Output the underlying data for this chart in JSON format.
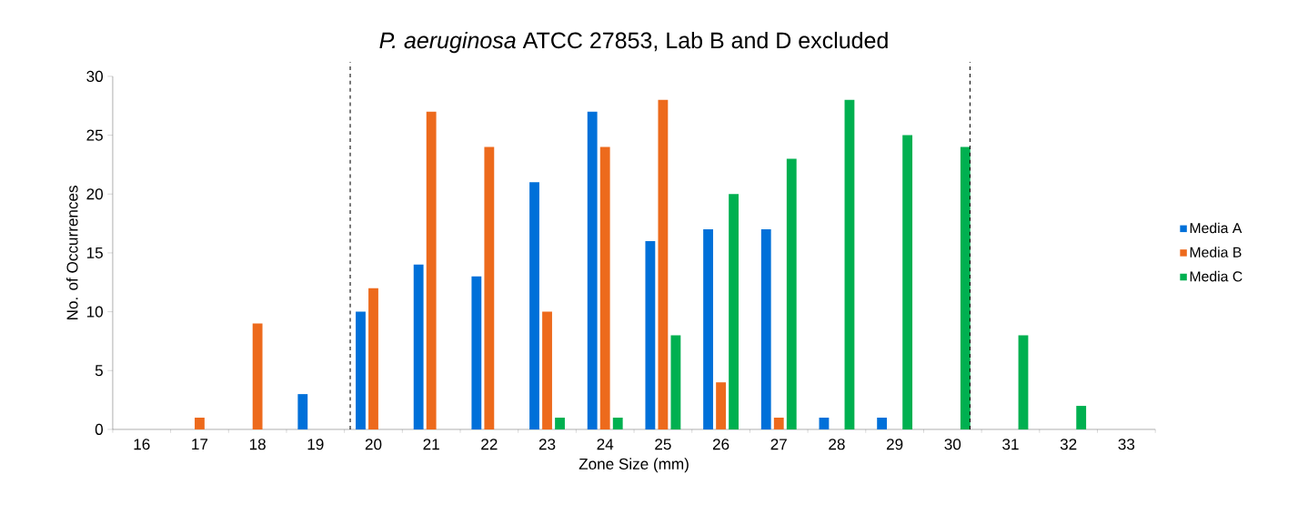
{
  "chart_data": {
    "type": "bar",
    "title": "*P. aeruginosa* ATCC 27853, Lab B and D excluded",
    "xlabel": "Zone Size (mm)",
    "ylabel": "No. of Occurrences",
    "x": [
      16,
      17,
      18,
      19,
      20,
      21,
      22,
      23,
      24,
      25,
      26,
      27,
      28,
      29,
      30,
      31,
      32,
      33
    ],
    "xlim": [
      15.5,
      33.5
    ],
    "xticks": [
      16,
      17,
      18,
      19,
      20,
      21,
      22,
      23,
      24,
      25,
      26,
      27,
      28,
      29,
      30,
      31,
      32,
      33
    ],
    "ylim": [
      0,
      30
    ],
    "yticks": [
      0,
      5,
      10,
      15,
      20,
      25,
      30
    ],
    "series": [
      {
        "name": "Media A",
        "color": "#0070d9",
        "values": [
          0,
          0,
          0,
          3,
          10,
          14,
          13,
          21,
          27,
          16,
          17,
          17,
          1,
          1,
          0,
          0,
          0,
          0
        ]
      },
      {
        "name": "Media B",
        "color": "#ed6a1c",
        "values": [
          0,
          1,
          9,
          0,
          12,
          27,
          24,
          10,
          24,
          28,
          4,
          1,
          0,
          0,
          0,
          0,
          0,
          0
        ]
      },
      {
        "name": "Media C",
        "color": "#00b050",
        "values": [
          0,
          0,
          0,
          0,
          0,
          0,
          0,
          1,
          1,
          8,
          20,
          23,
          28,
          25,
          24,
          8,
          2,
          0
        ]
      }
    ],
    "ref_lines": [
      {
        "axis": "x",
        "value": 19.6,
        "color": "#000000",
        "line_style": "dashed"
      },
      {
        "axis": "x",
        "value": 30.3,
        "color": "#000000",
        "line_style": "dashed"
      }
    ],
    "legend": "right",
    "grid": false
  }
}
